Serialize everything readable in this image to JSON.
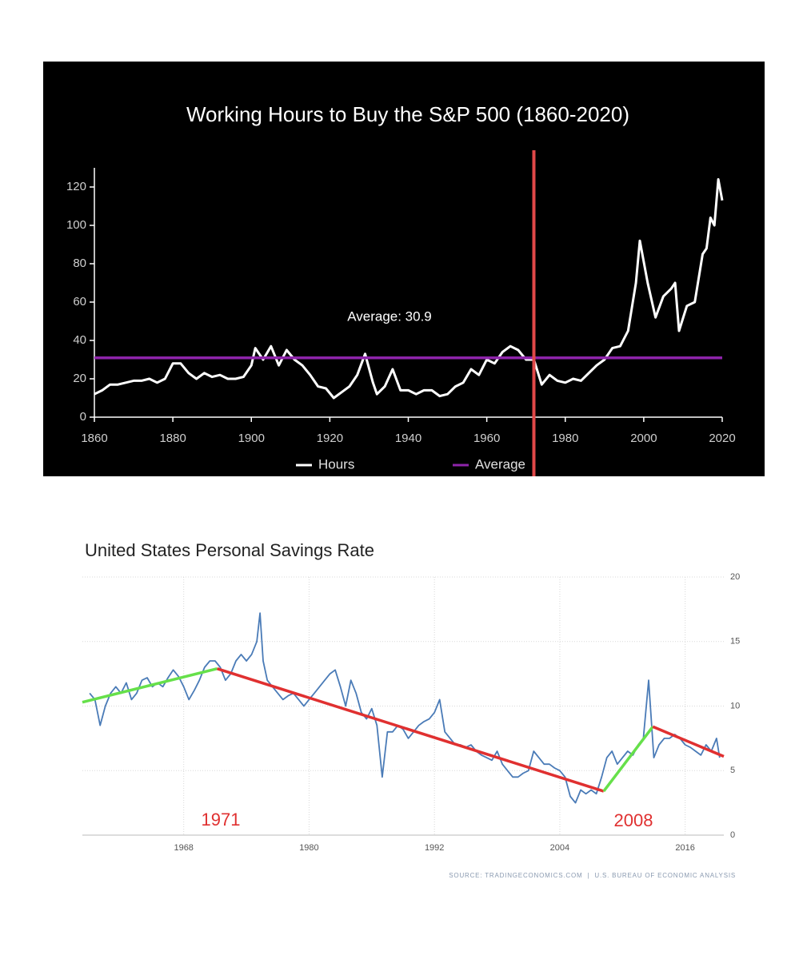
{
  "chart_data": [
    {
      "type": "line",
      "title": "Working Hours to Buy the S&P 500 (1860-2020)",
      "background": "#000000",
      "xlim": [
        1860,
        2020
      ],
      "xticks": [
        1860,
        1880,
        1900,
        1920,
        1940,
        1960,
        1980,
        2000,
        2020
      ],
      "ylim": [
        0,
        130
      ],
      "yticks": [
        0,
        20,
        40,
        60,
        80,
        100,
        120
      ],
      "grid": false,
      "legend": "bottom",
      "series": [
        {
          "name": "Hours",
          "color": "#ffffff",
          "x": [
            1860,
            1862,
            1864,
            1866,
            1868,
            1870,
            1872,
            1874,
            1876,
            1878,
            1880,
            1882,
            1884,
            1886,
            1888,
            1890,
            1892,
            1894,
            1896,
            1898,
            1900,
            1901,
            1903,
            1905,
            1907,
            1909,
            1911,
            1913,
            1915,
            1917,
            1919,
            1921,
            1923,
            1925,
            1927,
            1929,
            1931,
            1932,
            1934,
            1936,
            1938,
            1940,
            1942,
            1944,
            1946,
            1948,
            1950,
            1952,
            1954,
            1956,
            1958,
            1960,
            1962,
            1964,
            1966,
            1968,
            1970,
            1972,
            1974,
            1976,
            1978,
            1980,
            1982,
            1984,
            1986,
            1988,
            1990,
            1992,
            1994,
            1996,
            1998,
            1999,
            2001,
            2003,
            2005,
            2007,
            2008,
            2009,
            2011,
            2013,
            2015,
            2016,
            2017,
            2018,
            2019,
            2020
          ],
          "values": [
            12,
            14,
            17,
            17,
            18,
            19,
            19,
            20,
            18,
            20,
            28,
            28,
            23,
            20,
            23,
            21,
            22,
            20,
            20,
            21,
            27,
            36,
            30,
            37,
            27,
            35,
            30,
            27,
            22,
            16,
            15,
            10,
            13,
            16,
            22,
            33,
            18,
            12,
            16,
            25,
            14,
            14,
            12,
            14,
            14,
            11,
            12,
            16,
            18,
            25,
            22,
            30,
            28,
            34,
            37,
            35,
            30,
            30,
            17,
            22,
            19,
            18,
            20,
            19,
            23,
            27,
            30,
            36,
            37,
            45,
            70,
            92,
            70,
            52,
            63,
            67,
            70,
            45,
            58,
            60,
            85,
            88,
            104,
            100,
            124,
            113
          ]
        },
        {
          "name": "Average",
          "color": "#8e24aa",
          "x": [
            1860,
            2020
          ],
          "values": [
            30.9,
            30.9
          ]
        }
      ],
      "annotations": [
        "Average: 30.9"
      ],
      "vline": {
        "x": 1972,
        "color": "#e04848"
      }
    },
    {
      "type": "line",
      "title": "United States Personal Savings Rate",
      "background": "#ffffff",
      "xlim": [
        1958.3,
        2019.7
      ],
      "xticks": [
        1968,
        1980,
        1992,
        2004,
        2016
      ],
      "ylim": [
        0,
        20
      ],
      "yticks": [
        0,
        5,
        10,
        15,
        20
      ],
      "grid": true,
      "y_axis_side": "right",
      "series": [
        {
          "color": "#4a7bb7",
          "x": [
            1959,
            1959.5,
            1960,
            1960.5,
            1961,
            1961.5,
            1962,
            1962.5,
            1963,
            1963.5,
            1964,
            1964.5,
            1965,
            1965.5,
            1966,
            1966.5,
            1967,
            1967.5,
            1968,
            1968.5,
            1969,
            1969.5,
            1970,
            1970.5,
            1971,
            1971.5,
            1972,
            1972.5,
            1973,
            1973.5,
            1974,
            1974.5,
            1975,
            1975.3,
            1975.6,
            1976,
            1976.5,
            1977,
            1977.5,
            1978,
            1978.5,
            1979,
            1979.5,
            1980,
            1980.5,
            1981,
            1981.5,
            1982,
            1982.5,
            1983,
            1983.5,
            1984,
            1984.5,
            1985,
            1985.5,
            1986,
            1986.5,
            1987,
            1987.5,
            1988,
            1988.5,
            1989,
            1989.5,
            1990,
            1990.5,
            1991,
            1991.5,
            1992,
            1992.5,
            1993,
            1993.5,
            1994,
            1994.5,
            1995,
            1995.5,
            1996,
            1996.5,
            1997,
            1997.5,
            1998,
            1998.5,
            1999,
            1999.5,
            2000,
            2000.5,
            2001,
            2001.5,
            2002,
            2002.5,
            2003,
            2003.5,
            2004,
            2004.5,
            2005,
            2005.5,
            2006,
            2006.5,
            2007,
            2007.5,
            2008,
            2008.5,
            2009,
            2009.5,
            2010,
            2010.5,
            2011,
            2011.5,
            2012,
            2012.5,
            2013,
            2013.5,
            2014,
            2014.5,
            2015,
            2015.5,
            2016,
            2016.5,
            2017,
            2017.5,
            2018,
            2018.5,
            2019,
            2019.3
          ],
          "values": [
            11,
            10.5,
            8.5,
            10,
            11,
            11.5,
            11,
            11.8,
            10.5,
            11,
            12,
            12.2,
            11.5,
            11.8,
            11.5,
            12.2,
            12.8,
            12.3,
            11.5,
            10.5,
            11.2,
            12,
            13,
            13.5,
            13.5,
            13,
            12,
            12.5,
            13.5,
            14,
            13.5,
            14,
            15,
            17.2,
            13.5,
            12,
            11.5,
            11,
            10.5,
            10.8,
            11,
            10.5,
            10,
            10.5,
            11,
            11.5,
            12,
            12.5,
            12.8,
            11.5,
            10,
            12,
            11,
            9.5,
            9,
            9.8,
            8.5,
            4.5,
            8,
            8,
            8.5,
            8.2,
            7.5,
            8,
            8.5,
            8.8,
            9,
            9.5,
            10.5,
            8,
            7.5,
            7,
            7,
            6.8,
            7,
            6.5,
            6.2,
            6,
            5.8,
            6.5,
            5.5,
            5,
            4.5,
            4.5,
            4.8,
            5,
            6.5,
            6,
            5.5,
            5.5,
            5.2,
            5,
            4.5,
            3,
            2.5,
            3.5,
            3.2,
            3.5,
            3.2,
            4.5,
            6,
            6.5,
            5.5,
            6,
            6.5,
            6.2,
            7,
            7.5,
            12,
            6,
            7,
            7.5,
            7.5,
            7.8,
            7.5,
            7,
            6.8,
            6.5,
            6.2,
            7,
            6.5,
            7.5,
            6
          ]
        }
      ],
      "trend_lines": [
        {
          "color": "#66e04a",
          "x": [
            1958.3,
            1971.2
          ],
          "values": [
            10.3,
            12.9
          ]
        },
        {
          "color": "#e03030",
          "x": [
            1971.2,
            2008.2
          ],
          "values": [
            12.9,
            3.4
          ]
        },
        {
          "color": "#66e04a",
          "x": [
            2008.2,
            2012.9
          ],
          "values": [
            3.4,
            8.4
          ]
        },
        {
          "color": "#e03030",
          "x": [
            2012.9,
            2019.7
          ],
          "values": [
            8.4,
            6.1
          ]
        }
      ],
      "annotations": [
        "1971",
        "2008"
      ],
      "source": "SOURCE: TRADINGECONOMICS.COM  |  U.S. BUREAU OF ECONOMIC ANALYSIS"
    }
  ]
}
